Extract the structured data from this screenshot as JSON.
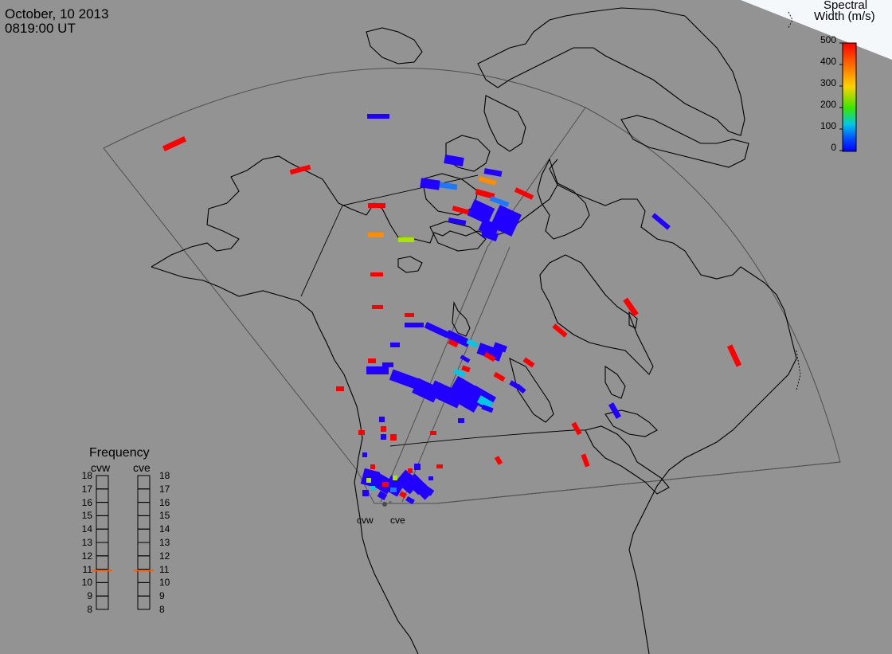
{
  "header": {
    "date": "October, 10 2013",
    "time": "0819:00 UT"
  },
  "colorbar": {
    "title_line1": "Spectral",
    "title_line2": "Width (m/s)",
    "ticks": [
      "500",
      "400",
      "300",
      "200",
      "100",
      "0"
    ],
    "min": 0,
    "max": 500,
    "colors": [
      "#ff0000",
      "#ff6a00",
      "#ffd200",
      "#39e600",
      "#00e6c8",
      "#0050ff",
      "#0000ff"
    ]
  },
  "frequency_panel": {
    "title": "Frequency",
    "radars": [
      {
        "label": "cvw",
        "value_mhz": 10.9
      },
      {
        "label": "cve",
        "value_mhz": 10.9
      }
    ],
    "ticks": [
      "18",
      "17",
      "16",
      "15",
      "14",
      "13",
      "12",
      "11",
      "10",
      "9",
      "8"
    ],
    "tick_values": [
      18,
      17,
      16,
      15,
      14,
      13,
      12,
      11,
      10,
      9,
      8
    ]
  },
  "sites": {
    "cvw": "cvw",
    "cve": "cve"
  },
  "colors": {
    "background": "#939393",
    "coastline": "#000000",
    "fov_outline": "#555555",
    "frequency_marker": "#ff5a00"
  }
}
